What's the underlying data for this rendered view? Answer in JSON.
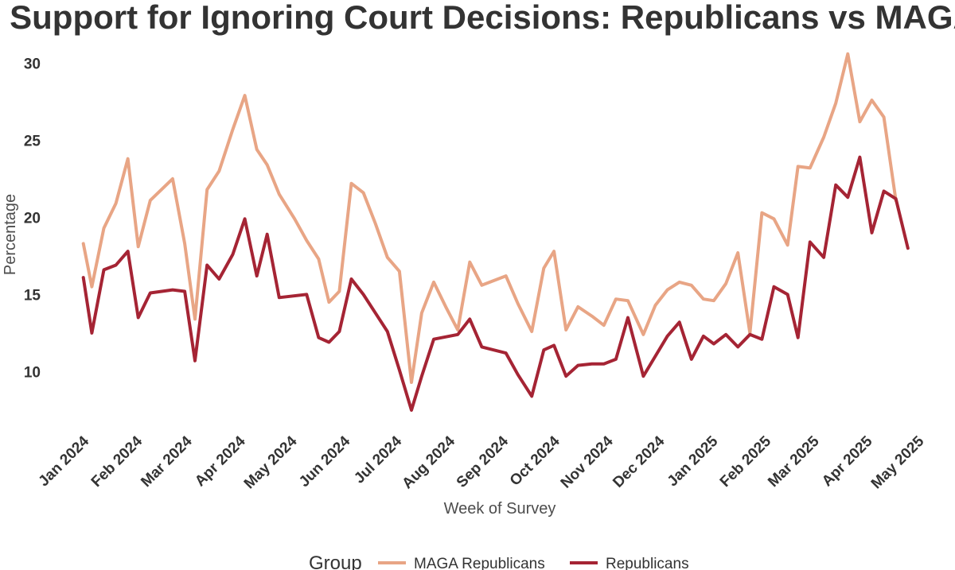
{
  "chart_data": {
    "type": "line",
    "title": "Support for Ignoring Court Decisions: Republicans vs MAGA",
    "xlabel": "Week of Survey",
    "ylabel": "Percentage",
    "ylim": [
      6,
      31
    ],
    "yticks": [
      10,
      15,
      20,
      25,
      30
    ],
    "xlim_weeks": [
      -1.5,
      70.5
    ],
    "xticks": [
      {
        "label": "Jan 2024",
        "week": 0
      },
      {
        "label": "Feb 2024",
        "week": 4.43
      },
      {
        "label": "Mar 2024",
        "week": 8.57
      },
      {
        "label": "Apr 2024",
        "week": 13
      },
      {
        "label": "May 2024",
        "week": 17.29
      },
      {
        "label": "Jun 2024",
        "week": 21.71
      },
      {
        "label": "Jul 2024",
        "week": 26
      },
      {
        "label": "Aug 2024",
        "week": 30.43
      },
      {
        "label": "Sep 2024",
        "week": 34.86
      },
      {
        "label": "Oct 2024",
        "week": 39.14
      },
      {
        "label": "Nov 2024",
        "week": 43.57
      },
      {
        "label": "Dec 2024",
        "week": 47.86
      },
      {
        "label": "Jan 2025",
        "week": 52.29
      },
      {
        "label": "Feb 2025",
        "week": 56.71
      },
      {
        "label": "Mar 2025",
        "week": 60.71
      },
      {
        "label": "Apr 2025",
        "week": 65.14
      },
      {
        "label": "May 2025",
        "week": 69.43
      }
    ],
    "grid": false,
    "legend": {
      "title": "Group",
      "position": "bottom",
      "entries": [
        {
          "name": "MAGA Republicans",
          "color": "#E8A585"
        },
        {
          "name": "Republicans",
          "color": "#A52434"
        }
      ]
    },
    "series": [
      {
        "name": "MAGA Republicans",
        "color": "#E8A585",
        "points": [
          [
            0,
            18.3
          ],
          [
            0.71,
            15.5
          ],
          [
            1.71,
            19.3
          ],
          [
            2.71,
            20.9
          ],
          [
            3.71,
            23.8
          ],
          [
            4.57,
            18.1
          ],
          [
            5.57,
            21.1
          ],
          [
            7.43,
            22.5
          ],
          [
            8.43,
            18.3
          ],
          [
            9.29,
            13.4
          ],
          [
            10.29,
            21.8
          ],
          [
            11.29,
            23.0
          ],
          [
            12.43,
            25.7
          ],
          [
            13.43,
            27.9
          ],
          [
            14.43,
            24.4
          ],
          [
            15.29,
            23.4
          ],
          [
            16.29,
            21.5
          ],
          [
            17.57,
            19.9
          ],
          [
            18.57,
            18.5
          ],
          [
            19.57,
            17.3
          ],
          [
            20.43,
            14.5
          ],
          [
            21.29,
            15.2
          ],
          [
            22.29,
            22.2
          ],
          [
            23.29,
            21.6
          ],
          [
            24.29,
            19.6
          ],
          [
            25.29,
            17.4
          ],
          [
            26.29,
            16.5
          ],
          [
            27.29,
            9.3
          ],
          [
            28.14,
            13.8
          ],
          [
            29.14,
            15.8
          ],
          [
            30.14,
            14.2
          ],
          [
            31.14,
            12.7
          ],
          [
            32.14,
            17.1
          ],
          [
            33.14,
            15.6
          ],
          [
            35.14,
            16.2
          ],
          [
            36.14,
            14.4
          ],
          [
            37.29,
            12.6
          ],
          [
            38.29,
            16.7
          ],
          [
            39.14,
            17.8
          ],
          [
            40.14,
            12.7
          ],
          [
            41.14,
            14.2
          ],
          [
            42.29,
            13.6
          ],
          [
            43.29,
            13.0
          ],
          [
            44.29,
            14.7
          ],
          [
            45.29,
            14.6
          ],
          [
            46.57,
            12.4
          ],
          [
            47.57,
            14.3
          ],
          [
            48.57,
            15.3
          ],
          [
            49.57,
            15.8
          ],
          [
            50.57,
            15.6
          ],
          [
            51.57,
            14.7
          ],
          [
            52.43,
            14.6
          ],
          [
            53.43,
            15.7
          ],
          [
            54.43,
            17.7
          ],
          [
            55.43,
            12.5
          ],
          [
            56.43,
            20.3
          ],
          [
            57.43,
            19.9
          ],
          [
            58.57,
            18.2
          ],
          [
            59.43,
            23.3
          ],
          [
            60.43,
            23.2
          ],
          [
            61.57,
            25.2
          ],
          [
            62.57,
            27.4
          ],
          [
            63.57,
            30.6
          ],
          [
            64.57,
            26.2
          ],
          [
            65.57,
            27.6
          ],
          [
            66.57,
            26.5
          ],
          [
            67.57,
            21.1
          ]
        ]
      },
      {
        "name": "Republicans",
        "color": "#A52434",
        "points": [
          [
            0,
            16.1
          ],
          [
            0.71,
            12.5
          ],
          [
            1.71,
            16.6
          ],
          [
            2.71,
            16.9
          ],
          [
            3.71,
            17.8
          ],
          [
            4.57,
            13.5
          ],
          [
            5.57,
            15.1
          ],
          [
            7.43,
            15.3
          ],
          [
            8.43,
            15.2
          ],
          [
            9.29,
            10.7
          ],
          [
            10.29,
            16.9
          ],
          [
            11.29,
            16.0
          ],
          [
            12.43,
            17.6
          ],
          [
            13.43,
            19.9
          ],
          [
            14.43,
            16.2
          ],
          [
            15.29,
            18.9
          ],
          [
            16.29,
            14.8
          ],
          [
            18.57,
            15.0
          ],
          [
            19.57,
            12.2
          ],
          [
            20.43,
            11.9
          ],
          [
            21.29,
            12.6
          ],
          [
            22.29,
            16.0
          ],
          [
            23.29,
            15.0
          ],
          [
            24.29,
            13.8
          ],
          [
            25.29,
            12.6
          ],
          [
            26.29,
            10.1
          ],
          [
            27.29,
            7.5
          ],
          [
            28.14,
            9.7
          ],
          [
            29.14,
            12.1
          ],
          [
            31.14,
            12.4
          ],
          [
            32.14,
            13.4
          ],
          [
            33.14,
            11.6
          ],
          [
            35.14,
            11.2
          ],
          [
            36.14,
            9.8
          ],
          [
            37.29,
            8.4
          ],
          [
            38.29,
            11.4
          ],
          [
            39.14,
            11.7
          ],
          [
            40.14,
            9.7
          ],
          [
            41.14,
            10.4
          ],
          [
            42.29,
            10.5
          ],
          [
            43.29,
            10.5
          ],
          [
            44.29,
            10.8
          ],
          [
            45.29,
            13.5
          ],
          [
            46.57,
            9.7
          ],
          [
            47.57,
            11.0
          ],
          [
            48.57,
            12.3
          ],
          [
            49.57,
            13.2
          ],
          [
            50.57,
            10.8
          ],
          [
            51.57,
            12.3
          ],
          [
            52.43,
            11.8
          ],
          [
            53.43,
            12.4
          ],
          [
            54.43,
            11.6
          ],
          [
            55.43,
            12.4
          ],
          [
            56.43,
            12.1
          ],
          [
            57.43,
            15.5
          ],
          [
            58.57,
            15.0
          ],
          [
            59.43,
            12.2
          ],
          [
            60.43,
            18.4
          ],
          [
            61.57,
            17.4
          ],
          [
            62.57,
            22.1
          ],
          [
            63.57,
            21.3
          ],
          [
            64.57,
            23.9
          ],
          [
            65.57,
            19.0
          ],
          [
            66.57,
            21.7
          ],
          [
            67.57,
            21.2
          ],
          [
            68.57,
            18.0
          ]
        ]
      }
    ]
  }
}
